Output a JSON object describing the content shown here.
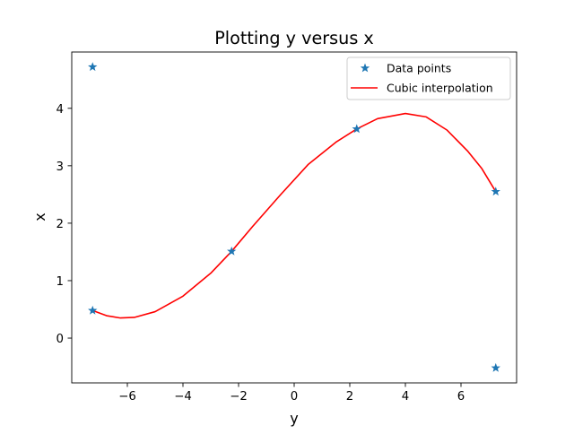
{
  "chart_data": {
    "type": "line",
    "title": "Plotting y versus x",
    "xlabel": "y",
    "ylabel": "x",
    "xlim": [
      -8.0,
      8.0
    ],
    "ylim": [
      -0.78,
      4.98
    ],
    "xticks": [
      -6,
      -4,
      -2,
      0,
      2,
      4,
      6
    ],
    "xtick_labels": [
      "−6",
      "−4",
      "−2",
      "0",
      "2",
      "4",
      "6"
    ],
    "yticks": [
      0,
      1,
      2,
      3,
      4
    ],
    "ytick_labels": [
      "0",
      "1",
      "2",
      "3",
      "4"
    ],
    "grid": false,
    "legend_position": "top-right",
    "series": [
      {
        "name": "Data points",
        "kind": "scatter",
        "marker": "star",
        "color": "#1f77b4",
        "points": [
          {
            "x": -7.25,
            "y": 4.72
          },
          {
            "x": -7.25,
            "y": 0.48
          },
          {
            "x": -2.25,
            "y": 1.51
          },
          {
            "x": 2.25,
            "y": 3.64
          },
          {
            "x": 7.25,
            "y": 2.55
          },
          {
            "x": 7.25,
            "y": -0.52
          }
        ]
      },
      {
        "name": "Cubic interpolation",
        "kind": "line",
        "color": "#ff0000",
        "points": [
          {
            "x": -7.25,
            "y": 0.48
          },
          {
            "x": -6.75,
            "y": 0.39
          },
          {
            "x": -6.25,
            "y": 0.35
          },
          {
            "x": -5.75,
            "y": 0.36
          },
          {
            "x": -5.0,
            "y": 0.46
          },
          {
            "x": -4.0,
            "y": 0.73
          },
          {
            "x": -3.0,
            "y": 1.13
          },
          {
            "x": -2.25,
            "y": 1.51
          },
          {
            "x": -1.5,
            "y": 1.94
          },
          {
            "x": -0.5,
            "y": 2.49
          },
          {
            "x": 0.5,
            "y": 3.02
          },
          {
            "x": 1.5,
            "y": 3.41
          },
          {
            "x": 2.25,
            "y": 3.64
          },
          {
            "x": 3.0,
            "y": 3.82
          },
          {
            "x": 4.0,
            "y": 3.91
          },
          {
            "x": 4.75,
            "y": 3.85
          },
          {
            "x": 5.5,
            "y": 3.62
          },
          {
            "x": 6.25,
            "y": 3.25
          },
          {
            "x": 6.75,
            "y": 2.95
          },
          {
            "x": 7.25,
            "y": 2.55
          }
        ]
      }
    ]
  }
}
